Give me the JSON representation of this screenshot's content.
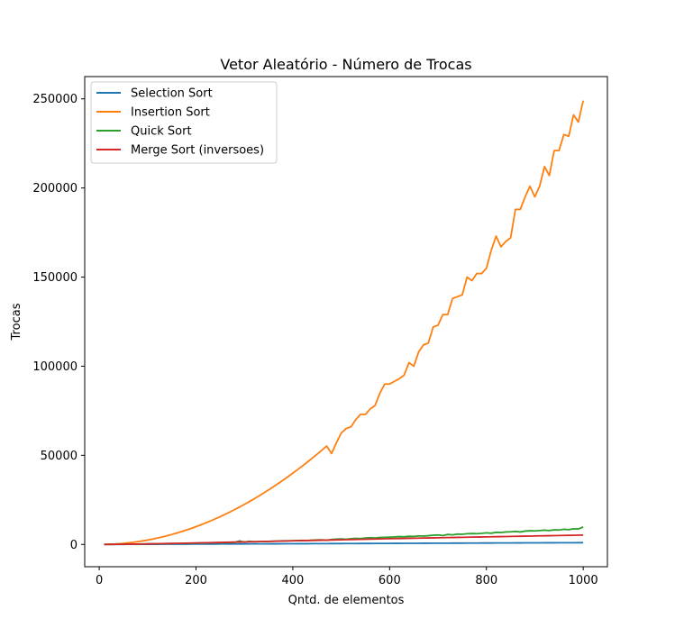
{
  "chart_data": {
    "type": "line",
    "title": "Vetor Aleatório - Número de Trocas",
    "xlabel": "Qntd. de elementos",
    "ylabel": "Trocas",
    "xlim": [
      -30,
      1050
    ],
    "ylim": [
      -12500,
      262500
    ],
    "xticks": [
      0,
      200,
      400,
      600,
      800,
      1000
    ],
    "yticks": [
      0,
      50000,
      100000,
      150000,
      200000,
      250000
    ],
    "grid": false,
    "legend_position": "upper left",
    "x": [
      10,
      20,
      30,
      40,
      50,
      60,
      70,
      80,
      90,
      100,
      110,
      120,
      130,
      140,
      150,
      160,
      170,
      180,
      190,
      200,
      210,
      220,
      230,
      240,
      250,
      260,
      270,
      280,
      290,
      300,
      310,
      320,
      330,
      340,
      350,
      360,
      370,
      380,
      390,
      400,
      410,
      420,
      430,
      440,
      450,
      460,
      470,
      480,
      490,
      500,
      510,
      520,
      530,
      540,
      550,
      560,
      570,
      580,
      590,
      600,
      610,
      620,
      630,
      640,
      650,
      660,
      670,
      680,
      690,
      700,
      710,
      720,
      730,
      740,
      750,
      760,
      770,
      780,
      790,
      800,
      810,
      820,
      830,
      840,
      850,
      860,
      870,
      880,
      890,
      900,
      910,
      920,
      930,
      940,
      950,
      960,
      970,
      980,
      990,
      1000
    ],
    "series": [
      {
        "name": "Selection Sort",
        "color": "#1f77b4",
        "values": [
          9,
          19,
          29,
          39,
          49,
          59,
          69,
          79,
          89,
          99,
          109,
          119,
          129,
          139,
          149,
          159,
          169,
          179,
          189,
          199,
          209,
          219,
          229,
          239,
          249,
          259,
          269,
          279,
          289,
          299,
          309,
          319,
          329,
          339,
          349,
          359,
          369,
          379,
          389,
          399,
          409,
          419,
          429,
          439,
          449,
          459,
          469,
          479,
          489,
          499,
          509,
          519,
          529,
          539,
          549,
          559,
          569,
          579,
          589,
          599,
          609,
          619,
          629,
          639,
          649,
          659,
          669,
          679,
          689,
          699,
          709,
          719,
          729,
          739,
          749,
          759,
          769,
          779,
          789,
          799,
          809,
          819,
          829,
          839,
          849,
          859,
          869,
          879,
          889,
          899,
          909,
          919,
          929,
          939,
          949,
          959,
          969,
          979,
          989,
          999
        ]
      },
      {
        "name": "Insertion Sort",
        "color": "#ff7f0e",
        "values": [
          25,
          100,
          220,
          400,
          600,
          900,
          1200,
          1600,
          2000,
          2500,
          3000,
          3600,
          4200,
          4900,
          5600,
          6400,
          7200,
          8100,
          9000,
          10000,
          11000,
          12100,
          13200,
          14400,
          15600,
          16900,
          18200,
          19600,
          21000,
          22500,
          24000,
          25600,
          27200,
          28900,
          30600,
          32400,
          34200,
          36100,
          38000,
          40000,
          42000,
          44100,
          46200,
          48400,
          50600,
          52900,
          55200,
          51000,
          57000,
          62500,
          65000,
          66000,
          70000,
          73000,
          73000,
          76000,
          78000,
          85000,
          90000,
          90000,
          91500,
          93000,
          95000,
          102000,
          100000,
          108000,
          112000,
          113000,
          122000,
          123000,
          129000,
          129000,
          138000,
          139000,
          140000,
          150000,
          148000,
          152000,
          152000,
          155000,
          165000,
          173000,
          167000,
          170000,
          172000,
          188000,
          188000,
          195000,
          201000,
          195000,
          201000,
          212000,
          207000,
          221000,
          221000,
          230000,
          229000,
          241000,
          237000,
          249000
        ]
      },
      {
        "name": "Quick Sort",
        "color": "#2ca02c",
        "values": [
          20,
          50,
          80,
          110,
          140,
          170,
          200,
          240,
          280,
          320,
          360,
          400,
          440,
          480,
          520,
          560,
          600,
          650,
          700,
          750,
          800,
          850,
          900,
          950,
          1000,
          1050,
          1100,
          1150,
          2000,
          1300,
          1800,
          1500,
          1600,
          1650,
          1700,
          1800,
          1900,
          2000,
          2050,
          2100,
          2200,
          2300,
          2200,
          2400,
          2500,
          2600,
          2300,
          2800,
          3000,
          3100,
          2900,
          3200,
          3400,
          3300,
          3600,
          3800,
          3600,
          3900,
          4000,
          4100,
          4200,
          4400,
          4300,
          4600,
          4500,
          4800,
          4700,
          4900,
          5200,
          5300,
          5000,
          5600,
          5400,
          5800,
          5700,
          6000,
          6100,
          6000,
          6200,
          6500,
          6300,
          6800,
          6700,
          7000,
          7100,
          7300,
          7000,
          7500,
          7700,
          7600,
          7800,
          8000,
          7800,
          8200,
          8100,
          8500,
          8300,
          8800,
          8700,
          9800
        ]
      },
      {
        "name": "Merge Sort (inversoes)",
        "color": "#d62728",
        "values": [
          5,
          20,
          50,
          80,
          110,
          140,
          180,
          220,
          260,
          300,
          350,
          400,
          450,
          500,
          550,
          600,
          650,
          700,
          760,
          820,
          880,
          940,
          1000,
          1060,
          1120,
          1180,
          1240,
          1300,
          1360,
          1420,
          1480,
          1540,
          1600,
          1660,
          1720,
          1780,
          1840,
          1900,
          1960,
          2020,
          2080,
          2140,
          2200,
          2260,
          2320,
          2380,
          2440,
          2500,
          2560,
          2620,
          2680,
          2740,
          2800,
          2860,
          2920,
          2980,
          3040,
          3100,
          3160,
          3220,
          3280,
          3340,
          3400,
          3450,
          3500,
          3550,
          3600,
          3650,
          3700,
          3750,
          3800,
          3850,
          3900,
          3950,
          4000,
          4050,
          4100,
          4150,
          4200,
          4250,
          4300,
          4350,
          4400,
          4450,
          4500,
          4550,
          4600,
          4650,
          4700,
          4750,
          4800,
          4850,
          4900,
          4950,
          5000,
          5050,
          5100,
          5150,
          5200,
          5250
        ]
      }
    ]
  }
}
